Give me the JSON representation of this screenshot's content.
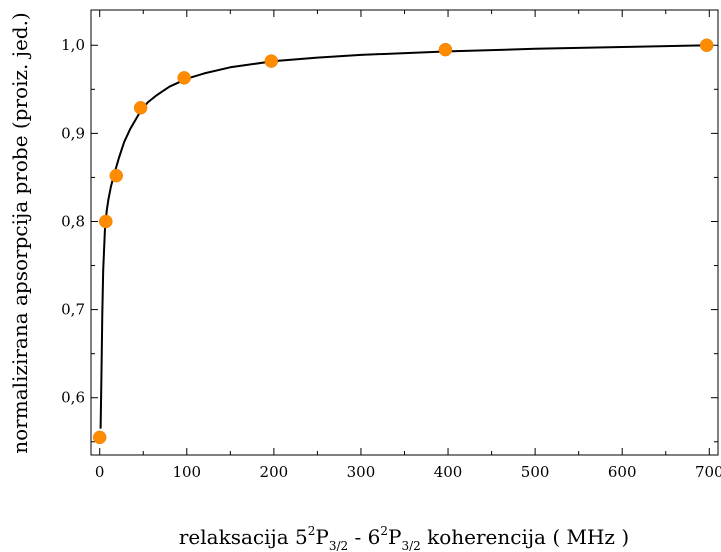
{
  "chart_data": {
    "type": "scatter",
    "xlabel": {
      "parts": [
        "relaksacija 5",
        "2",
        "P",
        "3/2",
        " - 6",
        "2",
        "P",
        "3/2",
        " koherencija ( MHz )"
      ]
    },
    "ylabel": "normalizirana apsorpcija probe (proiz. jed.)",
    "xlim": [
      -10,
      710
    ],
    "ylim": [
      0.535,
      1.04
    ],
    "xticks": [
      0,
      100,
      200,
      300,
      400,
      500,
      600,
      700
    ],
    "xtick_labels": [
      "0",
      "100",
      "200",
      "300",
      "400",
      "500",
      "600",
      "700"
    ],
    "yticks": [
      0.6,
      0.7,
      0.8,
      0.9,
      1.0
    ],
    "ytick_labels": [
      "0,6",
      "0,7",
      "0,8",
      "0,9",
      "1,0"
    ],
    "grid": false,
    "series": [
      {
        "kind": "points",
        "marker_color": "#ff8c00",
        "x": [
          0,
          7,
          19,
          47,
          97,
          197,
          397,
          697
        ],
        "y": [
          0.555,
          0.8,
          0.852,
          0.929,
          0.963,
          0.982,
          0.995,
          1.0
        ]
      },
      {
        "kind": "fit-line",
        "line_color": "#000000",
        "x": [
          1,
          2,
          3,
          4,
          6,
          8,
          10,
          13,
          17,
          22,
          28,
          35,
          45,
          55,
          65,
          80,
          100,
          120,
          150,
          200,
          250,
          300,
          400,
          500,
          600,
          700
        ],
        "y": [
          0.565,
          0.63,
          0.695,
          0.745,
          0.79,
          0.812,
          0.825,
          0.84,
          0.855,
          0.872,
          0.89,
          0.905,
          0.922,
          0.935,
          0.943,
          0.953,
          0.962,
          0.968,
          0.975,
          0.982,
          0.986,
          0.989,
          0.993,
          0.996,
          0.998,
          1.0
        ]
      }
    ]
  }
}
